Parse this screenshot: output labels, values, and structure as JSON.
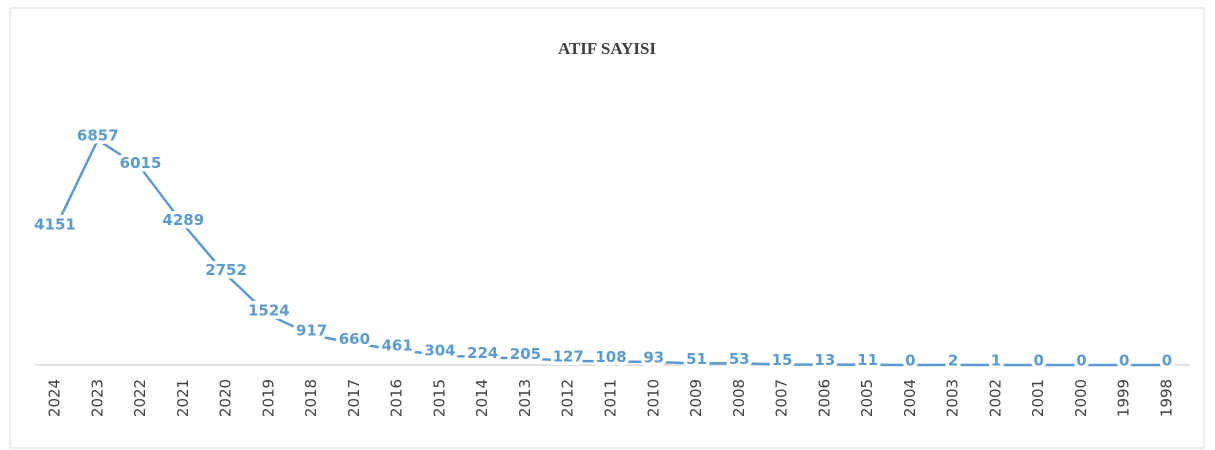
{
  "chart_data": {
    "type": "line",
    "title": "ATIF SAYISI",
    "categories": [
      "2024",
      "2023",
      "2022",
      "2021",
      "2020",
      "2019",
      "2018",
      "2017",
      "2016",
      "2015",
      "2014",
      "2013",
      "2012",
      "2011",
      "2010",
      "2009",
      "2008",
      "2007",
      "2006",
      "2005",
      "2004",
      "2003",
      "2002",
      "2001",
      "2000",
      "1999",
      "1998"
    ],
    "values": [
      4151,
      6857,
      6015,
      4289,
      2752,
      1524,
      917,
      660,
      461,
      304,
      224,
      205,
      127,
      108,
      93,
      51,
      53,
      15,
      13,
      11,
      0,
      2,
      1,
      0,
      0,
      0,
      0
    ],
    "color": "#5b9bd5",
    "grid": false
  }
}
